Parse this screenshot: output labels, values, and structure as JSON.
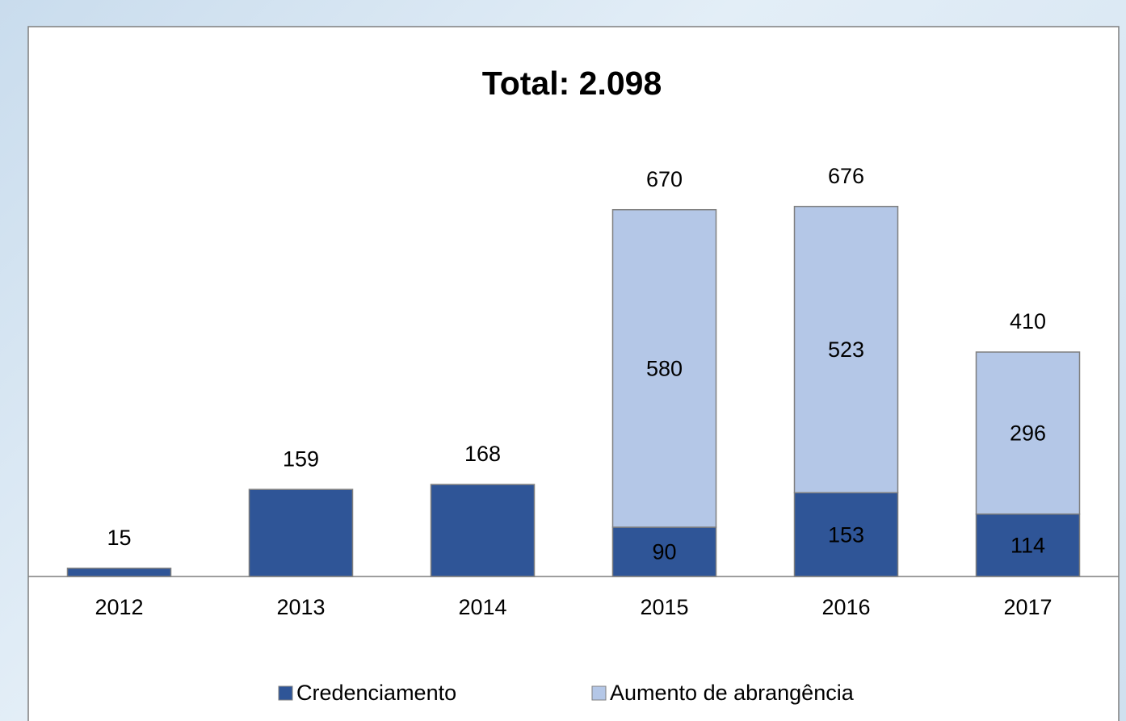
{
  "chart_data": {
    "type": "stacked_bar",
    "title": "Total: 2.098",
    "categories": [
      "2012",
      "2013",
      "2014",
      "2015",
      "2016",
      "2017"
    ],
    "series": [
      {
        "name": "Credenciamento",
        "color": "#2f5597",
        "values": [
          15,
          159,
          168,
          90,
          153,
          114
        ]
      },
      {
        "name": "Aumento de abrangência",
        "color": "#b4c7e7",
        "values": [
          null,
          null,
          null,
          580,
          523,
          296
        ]
      }
    ],
    "totals": [
      15,
      159,
      168,
      670,
      676,
      410
    ],
    "ylim": [
      0,
      1000
    ],
    "legend": "bottom"
  }
}
